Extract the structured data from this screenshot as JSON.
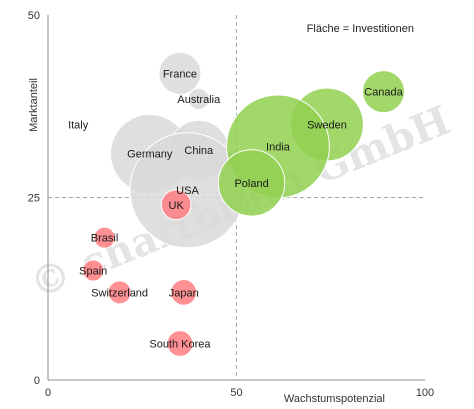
{
  "chart_data": {
    "type": "scatter",
    "title": "",
    "xlabel": "Wachstumspotenzial",
    "ylabel": "Marktanteil",
    "xlim": [
      0,
      100
    ],
    "ylim": [
      0,
      50
    ],
    "x_ticks": [
      "0",
      "50",
      "100"
    ],
    "y_ticks": [
      "0",
      "25",
      "50"
    ],
    "reference_lines": {
      "x": 50,
      "y": 25,
      "style": "dashed"
    },
    "note": "Fläche = Investitionen",
    "watermark": "© chartbrain GmbH",
    "points": [
      {
        "label": "France",
        "x": 35,
        "y": 42,
        "size": 4,
        "color": "#d9d9d9"
      },
      {
        "label": "Australia",
        "x": 40,
        "y": 38.5,
        "size": 1,
        "color": "#d9d9d9"
      },
      {
        "label": "Italy",
        "x": 8,
        "y": 35,
        "size": 0,
        "color": "#d9d9d9"
      },
      {
        "label": "Germany",
        "x": 27,
        "y": 31,
        "size": 14,
        "color": "#d9d9d9"
      },
      {
        "label": "China",
        "x": 40,
        "y": 31.5,
        "size": 8,
        "color": "#d9d9d9"
      },
      {
        "label": "USA",
        "x": 37,
        "y": 26,
        "size": 30,
        "color": "#d9d9d9"
      },
      {
        "label": "Canada",
        "x": 89,
        "y": 39.5,
        "size": 4,
        "color": "#92d050"
      },
      {
        "label": "Sweden",
        "x": 74,
        "y": 35,
        "size": 12,
        "color": "#92d050"
      },
      {
        "label": "India",
        "x": 61,
        "y": 32,
        "size": 24,
        "color": "#92d050"
      },
      {
        "label": "Poland",
        "x": 54,
        "y": 27,
        "size": 10,
        "color": "#92d050"
      },
      {
        "label": "UK",
        "x": 34,
        "y": 24,
        "size": 2,
        "color": "#ff7c80"
      },
      {
        "label": "Brasil",
        "x": 15,
        "y": 19.5,
        "size": 1,
        "color": "#ff7c80"
      },
      {
        "label": "Spain",
        "x": 12,
        "y": 15,
        "size": 1,
        "color": "#ff7c80"
      },
      {
        "label": "Switzerland",
        "x": 19,
        "y": 12,
        "size": 1.2,
        "color": "#ff7c80"
      },
      {
        "label": "Japan",
        "x": 36,
        "y": 12,
        "size": 1.5,
        "color": "#ff7c80"
      },
      {
        "label": "South Korea",
        "x": 35,
        "y": 5,
        "size": 1.5,
        "color": "#ff7c80"
      }
    ]
  }
}
